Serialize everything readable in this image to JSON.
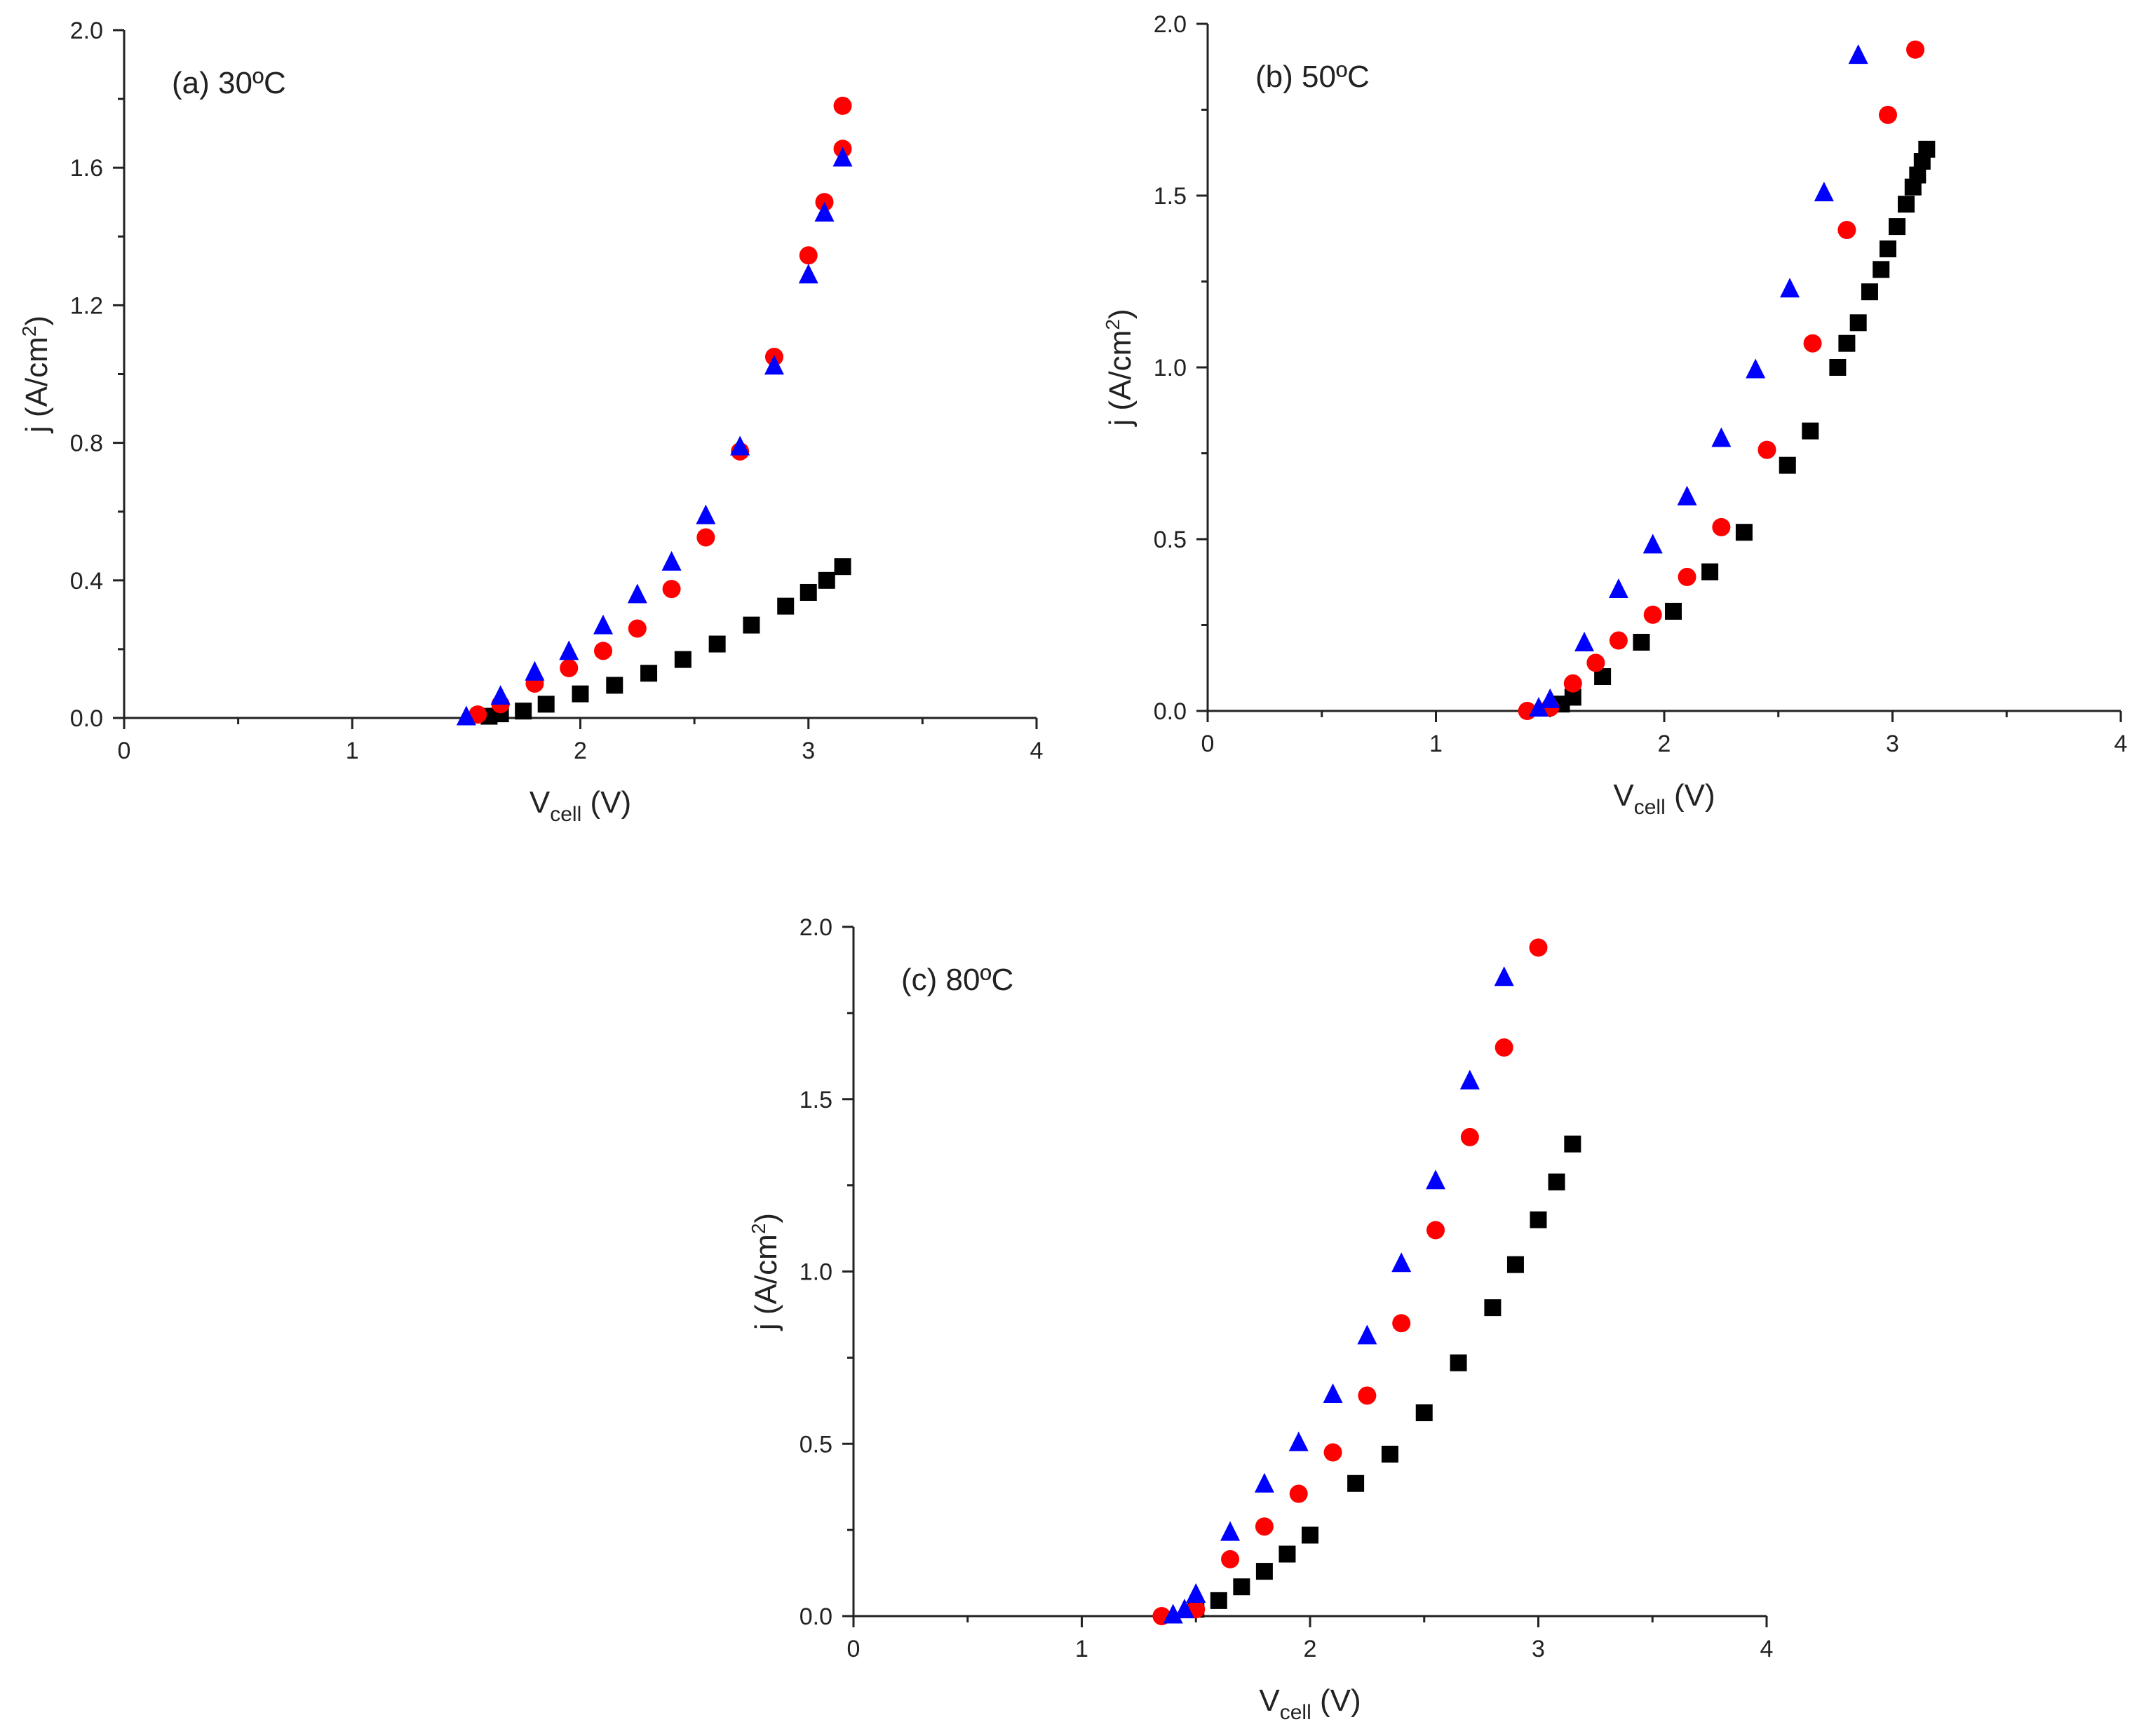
{
  "chart_data": [
    {
      "type": "scatter",
      "title": "(a) 30ºC",
      "xlabel": "V",
      "xlabel_sub": "cell",
      "xlabel_unit": " (V)",
      "ylabel": "j (A/cm",
      "ylabel_sup": "2",
      "ylabel_close": ")",
      "xlim": [
        0,
        4
      ],
      "ylim": [
        0,
        2.0
      ],
      "xticks": [
        "0",
        "1",
        "2",
        "3",
        "4"
      ],
      "yticks": [
        "0.0",
        "0.4",
        "0.8",
        "1.2",
        "1.6",
        "2.0"
      ],
      "grid": false,
      "series": [
        {
          "marker": "square",
          "color": "#000000",
          "x": [
            1.6,
            1.65,
            1.75,
            1.85,
            2.0,
            2.15,
            2.3,
            2.45,
            2.6,
            2.75,
            2.9,
            3.0,
            3.08,
            3.15
          ],
          "y": [
            0.005,
            0.012,
            0.02,
            0.04,
            0.07,
            0.095,
            0.13,
            0.17,
            0.215,
            0.27,
            0.325,
            0.365,
            0.4,
            0.44
          ]
        },
        {
          "marker": "circle",
          "color": "#ff0000",
          "x": [
            1.55,
            1.65,
            1.8,
            1.95,
            2.1,
            2.25,
            2.4,
            2.55,
            2.7,
            2.85,
            3.0,
            3.07,
            3.15,
            3.15
          ],
          "y": [
            0.01,
            0.04,
            0.1,
            0.145,
            0.195,
            0.26,
            0.375,
            0.525,
            0.775,
            1.05,
            1.345,
            1.5,
            1.655,
            1.78
          ]
        },
        {
          "marker": "triangle",
          "color": "#0000ff",
          "x": [
            1.5,
            1.65,
            1.8,
            1.95,
            2.1,
            2.25,
            2.4,
            2.55,
            2.7,
            2.85,
            3.0,
            3.07,
            3.15
          ],
          "y": [
            0.005,
            0.065,
            0.135,
            0.195,
            0.27,
            0.36,
            0.455,
            0.59,
            0.79,
            1.025,
            1.29,
            1.47,
            1.63
          ]
        }
      ]
    },
    {
      "type": "scatter",
      "title": "(b) 50ºC",
      "xlabel": "V",
      "xlabel_sub": "cell",
      "xlabel_unit": " (V)",
      "ylabel": "j (A/cm",
      "ylabel_sup": "2",
      "ylabel_close": ")",
      "xlim": [
        0,
        4
      ],
      "ylim": [
        0,
        2.0
      ],
      "xticks": [
        "0",
        "1",
        "2",
        "3",
        "4"
      ],
      "yticks": [
        "0.0",
        "0.5",
        "1.0",
        "1.5",
        "2.0"
      ],
      "grid": false,
      "series": [
        {
          "marker": "square",
          "color": "#000000",
          "x": [
            1.55,
            1.6,
            1.73,
            1.9,
            2.04,
            2.2,
            2.35,
            2.54,
            2.64,
            2.76,
            2.8,
            2.85,
            2.9,
            2.95,
            2.98,
            3.02,
            3.06,
            3.09,
            3.11,
            3.13,
            3.15
          ],
          "y": [
            0.02,
            0.04,
            0.1,
            0.2,
            0.29,
            0.405,
            0.52,
            0.715,
            0.815,
            1.0,
            1.07,
            1.13,
            1.22,
            1.285,
            1.345,
            1.41,
            1.475,
            1.525,
            1.56,
            1.6,
            1.635
          ]
        },
        {
          "marker": "circle",
          "color": "#ff0000",
          "x": [
            1.4,
            1.5,
            1.6,
            1.7,
            1.8,
            1.95,
            2.1,
            2.25,
            2.45,
            2.65,
            2.8,
            2.98,
            3.1
          ],
          "y": [
            0.0,
            0.01,
            0.08,
            0.14,
            0.205,
            0.28,
            0.39,
            0.535,
            0.76,
            1.07,
            1.4,
            1.735,
            1.925
          ]
        },
        {
          "marker": "triangle",
          "color": "#0000ff",
          "x": [
            1.45,
            1.5,
            1.65,
            1.8,
            1.95,
            2.1,
            2.25,
            2.4,
            2.55,
            2.7,
            2.85
          ],
          "y": [
            0.01,
            0.035,
            0.2,
            0.355,
            0.485,
            0.625,
            0.795,
            0.995,
            1.23,
            1.51,
            1.91
          ]
        }
      ]
    },
    {
      "type": "scatter",
      "title": "(c) 80ºC",
      "xlabel": "V",
      "xlabel_sub": "cell",
      "xlabel_unit": " (V)",
      "ylabel": "j (A/cm",
      "ylabel_sup": "2",
      "ylabel_close": ")",
      "xlim": [
        0,
        4
      ],
      "ylim": [
        0,
        2.0
      ],
      "xticks": [
        "0",
        "1",
        "2",
        "3",
        "4"
      ],
      "yticks": [
        "0.0",
        "0.5",
        "1.0",
        "1.5",
        "2.0"
      ],
      "grid": false,
      "series": [
        {
          "marker": "square",
          "color": "#000000",
          "x": [
            1.5,
            1.6,
            1.7,
            1.8,
            1.9,
            2.0,
            2.2,
            2.35,
            2.5,
            2.65,
            2.8,
            2.9,
            3.0,
            3.08,
            3.15
          ],
          "y": [
            0.02,
            0.045,
            0.085,
            0.13,
            0.18,
            0.235,
            0.385,
            0.47,
            0.59,
            0.735,
            0.895,
            1.02,
            1.15,
            1.26,
            1.37
          ]
        },
        {
          "marker": "circle",
          "color": "#ff0000",
          "x": [
            1.35,
            1.5,
            1.65,
            1.8,
            1.95,
            2.1,
            2.25,
            2.4,
            2.55,
            2.7,
            2.85,
            3.0
          ],
          "y": [
            0.0,
            0.02,
            0.165,
            0.26,
            0.355,
            0.475,
            0.64,
            0.85,
            1.12,
            1.39,
            1.65,
            1.94
          ]
        },
        {
          "marker": "triangle",
          "color": "#0000ff",
          "x": [
            1.4,
            1.45,
            1.5,
            1.65,
            1.8,
            1.95,
            2.1,
            2.25,
            2.4,
            2.55,
            2.7,
            2.85
          ],
          "y": [
            0.005,
            0.02,
            0.065,
            0.245,
            0.385,
            0.505,
            0.645,
            0.815,
            1.025,
            1.265,
            1.555,
            1.855
          ]
        }
      ]
    }
  ]
}
